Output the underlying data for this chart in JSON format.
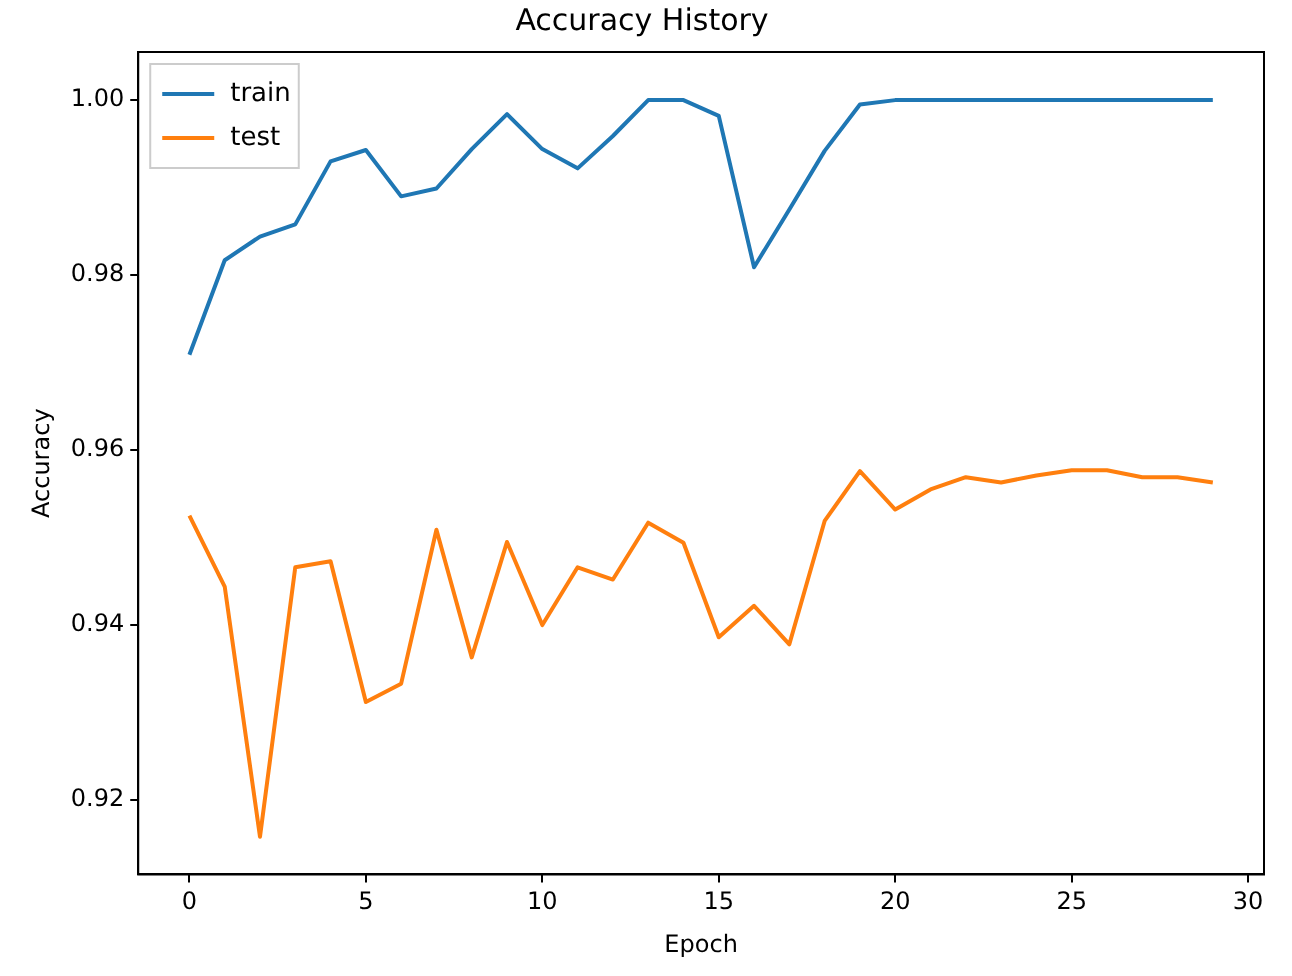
{
  "chart_data": {
    "type": "line",
    "title": "Accuracy History",
    "xlabel": "Epoch",
    "ylabel": "Accuracy",
    "x": [
      0,
      1,
      2,
      3,
      4,
      5,
      6,
      7,
      8,
      9,
      10,
      11,
      12,
      13,
      14,
      15,
      16,
      17,
      18,
      19,
      20,
      21,
      22,
      23,
      24,
      25,
      26,
      27,
      28,
      29
    ],
    "series": [
      {
        "name": "train",
        "color": "#1f77b4",
        "values": [
          0.9709,
          0.9817,
          0.9844,
          0.9858,
          0.993,
          0.9943,
          0.989,
          0.9899,
          0.9944,
          0.9984,
          0.9944,
          0.9922,
          0.9959,
          1.0,
          1.0,
          0.9982,
          0.9809,
          0.9875,
          0.9942,
          0.9995,
          1.0,
          1.0,
          1.0,
          1.0,
          1.0,
          1.0,
          1.0,
          1.0,
          1.0,
          1.0
        ]
      },
      {
        "name": "test",
        "color": "#ff7f0e",
        "values": [
          0.9525,
          0.9444,
          0.9158,
          0.9466,
          0.9473,
          0.9312,
          0.9333,
          0.9509,
          0.9363,
          0.9495,
          0.94,
          0.9466,
          0.9452,
          0.9517,
          0.9494,
          0.9386,
          0.9422,
          0.9378,
          0.9519,
          0.9576,
          0.9532,
          0.9555,
          0.9569,
          0.9563,
          0.9571,
          0.9577,
          0.9577,
          0.9569,
          0.9569,
          0.9563
        ]
      }
    ],
    "xlim": [
      -1.45,
      30.45
    ],
    "xticks": [
      0,
      5,
      10,
      15,
      20,
      25,
      30
    ],
    "ylim": [
      0.9115,
      1.0055
    ],
    "yticks": [
      0.92,
      0.94,
      0.96,
      0.98,
      {
        "value": 1,
        "label": "1.00"
      }
    ],
    "grid": false,
    "legend": "top left",
    "line_style": "solid",
    "marker": "none"
  }
}
